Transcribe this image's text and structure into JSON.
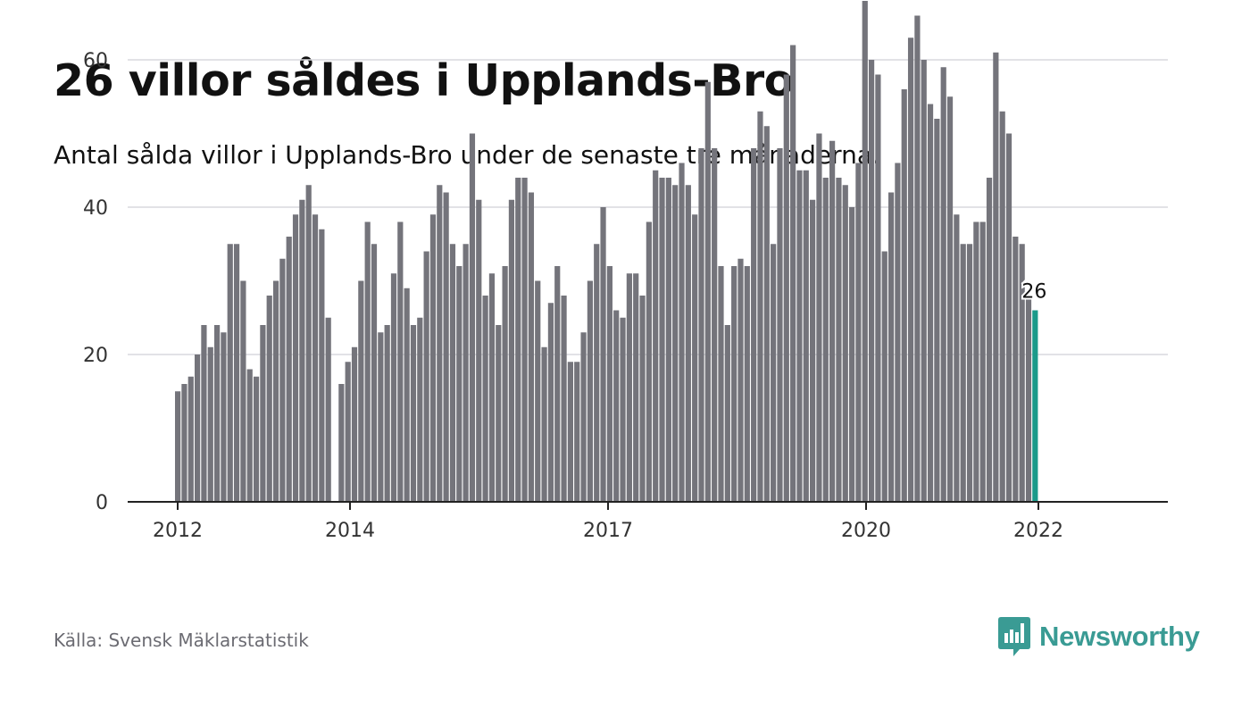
{
  "header": {
    "title": "26 villor såldes i Upplands-Bro",
    "subtitle": "Antal sålda villor i Upplands-Bro under de senaste tre månaderna."
  },
  "footer": {
    "source": "Källa: Svensk Mäklarstatistik",
    "brand": "Newsworthy",
    "brand_icon": "newsworthy-logo-icon"
  },
  "colors": {
    "bar": "#74747b",
    "highlight": "#1a9a8a",
    "brand": "#3a9b94",
    "grid": "#d9d9de",
    "axis": "#222222"
  },
  "chart_data": {
    "type": "bar",
    "x_tick_labels": [
      "2012",
      "2014",
      "2017",
      "2020",
      "2022"
    ],
    "y_ticks": [
      0,
      20,
      40,
      60
    ],
    "ylim": [
      0,
      70
    ],
    "grid": true,
    "highlight_label": "26",
    "series": [
      {
        "values": [
          15,
          16,
          17,
          20,
          24,
          21,
          24,
          23,
          35,
          35,
          30,
          18,
          17,
          24,
          28,
          30,
          33,
          36,
          39,
          41,
          43,
          39,
          37,
          25,
          null,
          16,
          19,
          21,
          30,
          38,
          35,
          23,
          24,
          31,
          38,
          29,
          24,
          25,
          34,
          39,
          43,
          42,
          35,
          32,
          35,
          50,
          41,
          28,
          31,
          24,
          32,
          41,
          44,
          44,
          42,
          30,
          21,
          27,
          32,
          28,
          19,
          19,
          23,
          30,
          35,
          40,
          32,
          26,
          25,
          31,
          31,
          28,
          38,
          45,
          44,
          44,
          43,
          46,
          43,
          39,
          48,
          57,
          48,
          32,
          24,
          32,
          33,
          32,
          48,
          53,
          51,
          35,
          48,
          58,
          62,
          45,
          45,
          41,
          50,
          44,
          49,
          44,
          43,
          40,
          46,
          68,
          60,
          58,
          34,
          42,
          46,
          56,
          63,
          66,
          60,
          54,
          52,
          59,
          55,
          39,
          35,
          35,
          38,
          38,
          44,
          61,
          53,
          50,
          36,
          35,
          28,
          26
        ]
      }
    ]
  }
}
